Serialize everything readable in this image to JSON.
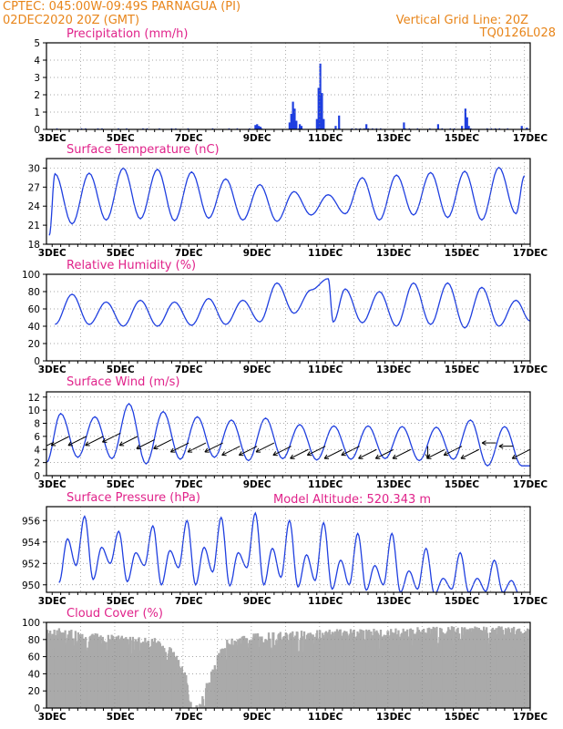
{
  "header": {
    "line1": "CPTEC:   045:00W-09:49S   PARNAGUA (PI)",
    "line2": "02DEC2020  20Z  (GMT)",
    "right1": "Vertical Grid Line: 20Z",
    "right2": "TQ0126L028",
    "model_altitude": "Model Altitude: 520.343 m"
  },
  "colors": {
    "header": "#e8851a",
    "title": "#e0228a",
    "line": "#1f3fe0",
    "cloud": "#aaaaaa",
    "grid": "#888888"
  },
  "x_ticks": [
    "3DEC",
    "5DEC",
    "7DEC",
    "9DEC",
    "11DEC",
    "13DEC",
    "15DEC",
    "17DEC"
  ],
  "chart_data": [
    {
      "type": "bar",
      "title": "Precipitation (mm/h)",
      "x_range_days": [
        2.833,
        17.0
      ],
      "ylim": [
        0,
        5
      ],
      "yticks": [
        "0",
        "1",
        "2",
        "3",
        "4",
        "5"
      ],
      "points": [
        [
          8.95,
          0.25
        ],
        [
          9.0,
          0.3
        ],
        [
          9.05,
          0.2
        ],
        [
          9.1,
          0.15
        ],
        [
          9.95,
          0.4
        ],
        [
          10.0,
          0.9
        ],
        [
          10.05,
          1.6
        ],
        [
          10.1,
          1.2
        ],
        [
          10.15,
          0.5
        ],
        [
          10.25,
          0.3
        ],
        [
          10.3,
          0.2
        ],
        [
          10.75,
          0.6
        ],
        [
          10.8,
          2.4
        ],
        [
          10.85,
          3.8
        ],
        [
          10.9,
          2.1
        ],
        [
          10.95,
          0.6
        ],
        [
          11.3,
          0.2
        ],
        [
          11.4,
          0.8
        ],
        [
          12.2,
          0.3
        ],
        [
          13.3,
          0.4
        ],
        [
          14.3,
          0.3
        ],
        [
          15.0,
          0.2
        ],
        [
          15.1,
          1.2
        ],
        [
          15.15,
          0.7
        ],
        [
          15.2,
          0.2
        ],
        [
          16.75,
          0.2
        ],
        [
          16.9,
          0.1
        ]
      ]
    },
    {
      "type": "line",
      "title": "Surface Temperature (nC)",
      "ylim": [
        18,
        31.5
      ],
      "yticks": [
        "18",
        "21",
        "24",
        "27",
        "30"
      ],
      "peak_days": [
        3.083,
        4.083,
        5.083,
        6.083,
        7.083,
        8.083,
        9.083,
        10.083,
        11.083,
        12.083,
        13.083,
        14.083,
        15.083,
        16.083,
        16.833
      ],
      "peaks": [
        29.1,
        29.2,
        30.0,
        29.8,
        29.4,
        28.3,
        27.4,
        26.3,
        25.8,
        28.5,
        28.9,
        29.3,
        29.5,
        30.1,
        28.8
      ],
      "troughs_days": [
        2.917,
        3.583,
        4.583,
        5.583,
        6.583,
        7.583,
        8.583,
        9.583,
        10.583,
        11.583,
        12.583,
        13.583,
        14.583,
        15.583,
        16.583
      ],
      "troughs": [
        19.4,
        21.2,
        21.8,
        22.0,
        21.7,
        22.1,
        21.8,
        21.6,
        22.6,
        22.8,
        21.8,
        22.6,
        22.2,
        21.8,
        22.8
      ]
    },
    {
      "type": "line",
      "title": "Relative Humidity (%)",
      "ylim": [
        0,
        100
      ],
      "yticks": [
        "0",
        "20",
        "40",
        "60",
        "80",
        "100"
      ],
      "peak_days": [
        3.583,
        4.583,
        5.583,
        6.583,
        7.583,
        8.583,
        9.583,
        10.583,
        11.083,
        11.583,
        12.583,
        13.583,
        14.583,
        15.583,
        16.583
      ],
      "peaks": [
        77,
        68,
        70,
        68,
        72,
        70,
        90,
        82,
        95,
        83,
        80,
        90,
        90,
        85,
        70
      ],
      "troughs_days": [
        3.083,
        4.083,
        5.083,
        6.083,
        7.083,
        8.083,
        9.083,
        10.083,
        11.233,
        12.083,
        13.083,
        14.083,
        15.083,
        16.083,
        17.0
      ],
      "troughs": [
        42,
        42,
        40,
        40,
        41,
        42,
        45,
        55,
        45,
        44,
        40,
        42,
        38,
        40,
        46
      ]
    },
    {
      "type": "line",
      "title": "Surface Wind (m/s)",
      "ylim": [
        0,
        12.8
      ],
      "yticks": [
        "0",
        "2",
        "4",
        "6",
        "8",
        "10",
        "12"
      ],
      "peak_days": [
        3.25,
        4.25,
        5.25,
        6.25,
        7.25,
        8.25,
        9.25,
        10.25,
        11.25,
        12.25,
        13.25,
        14.25,
        15.25,
        16.25
      ],
      "peaks": [
        9.5,
        9.0,
        11.0,
        9.8,
        9.0,
        8.5,
        8.8,
        7.8,
        7.6,
        7.6,
        7.5,
        7.4,
        8.5,
        7.5
      ],
      "troughs_days": [
        2.833,
        3.75,
        4.75,
        5.75,
        6.75,
        7.75,
        8.75,
        9.75,
        10.75,
        11.75,
        12.75,
        13.75,
        14.75,
        15.75,
        16.75,
        17.0
      ],
      "troughs": [
        2.0,
        2.8,
        2.6,
        1.8,
        2.5,
        2.8,
        2.3,
        2.6,
        2.4,
        2.5,
        2.6,
        2.3,
        2.5,
        1.5,
        1.5,
        1.5
      ]
    },
    {
      "type": "line",
      "title": "Surface Pressure (hPa)",
      "ylim": [
        949.3,
        957.3
      ],
      "yticks": [
        "950",
        "952",
        "954",
        "956"
      ],
      "peak_days": [
        3.45,
        3.95,
        4.45,
        4.95,
        5.45,
        5.95,
        6.45,
        6.95,
        7.45,
        7.95,
        8.45,
        8.95,
        9.45,
        9.95,
        10.45,
        10.95,
        11.45,
        11.95,
        12.45,
        12.95,
        13.45,
        13.95,
        14.45,
        14.95,
        15.45,
        15.95,
        16.45
      ],
      "peaks": [
        954.3,
        956.4,
        953.5,
        955.0,
        953.0,
        955.5,
        953.2,
        956.0,
        953.5,
        956.3,
        953.0,
        956.7,
        953.4,
        956.0,
        952.8,
        955.8,
        952.3,
        954.8,
        951.8,
        954.8,
        951.3,
        953.4,
        950.6,
        953.0,
        950.6,
        952.3,
        950.4
      ],
      "troughs_days": [
        3.2,
        3.7,
        4.2,
        4.7,
        5.2,
        5.7,
        6.2,
        6.7,
        7.2,
        7.7,
        8.2,
        8.7,
        9.2,
        9.7,
        10.2,
        10.7,
        11.2,
        11.7,
        12.2,
        12.7,
        13.2,
        13.7,
        14.2,
        14.7,
        15.2,
        15.7,
        16.2,
        16.7
      ],
      "troughs": [
        950.2,
        951.8,
        950.5,
        952.0,
        950.3,
        951.8,
        950.0,
        951.6,
        950.0,
        951.2,
        949.9,
        951.6,
        950.0,
        950.7,
        949.8,
        950.4,
        949.6,
        950.0,
        949.5,
        950.0,
        949.3,
        949.6,
        949.1,
        949.6,
        949.3,
        949.4,
        949.3,
        949.0
      ]
    },
    {
      "type": "bar",
      "title": "Cloud Cover (%)",
      "ylim": [
        0,
        100
      ],
      "yticks": [
        "0",
        "20",
        "40",
        "60",
        "80",
        "100"
      ],
      "profile_days": [
        2.833,
        3.5,
        4.0,
        5.0,
        6.0,
        6.5,
        6.9,
        7.05,
        7.2,
        7.6,
        8.0,
        9.0,
        10.0,
        11.0,
        12.0,
        13.0,
        14.0,
        15.0,
        16.0,
        17.0
      ],
      "profile_vals": [
        95,
        92,
        88,
        85,
        82,
        70,
        40,
        5,
        3,
        40,
        80,
        88,
        90,
        92,
        93,
        94,
        95,
        96,
        96,
        95
      ]
    }
  ],
  "wind_arrows": [
    {
      "day": 3.0,
      "speed": 5.0,
      "dir": "sw"
    },
    {
      "day": 3.5,
      "speed": 6.0,
      "dir": "sw"
    },
    {
      "day": 4.0,
      "speed": 6.0,
      "dir": "sw"
    },
    {
      "day": 4.5,
      "speed": 6.0,
      "dir": "sw"
    },
    {
      "day": 5.0,
      "speed": 6.5,
      "dir": "sw"
    },
    {
      "day": 5.5,
      "speed": 6.0,
      "dir": "sw"
    },
    {
      "day": 6.0,
      "speed": 5.5,
      "dir": "sw"
    },
    {
      "day": 6.5,
      "speed": 5.5,
      "dir": "sw"
    },
    {
      "day": 7.0,
      "speed": 5.0,
      "dir": "sw"
    },
    {
      "day": 7.5,
      "speed": 5.0,
      "dir": "sw"
    },
    {
      "day": 8.0,
      "speed": 5.0,
      "dir": "sw"
    },
    {
      "day": 8.5,
      "speed": 4.5,
      "dir": "sw"
    },
    {
      "day": 9.0,
      "speed": 4.5,
      "dir": "sw"
    },
    {
      "day": 9.5,
      "speed": 5.0,
      "dir": "sw"
    },
    {
      "day": 10.0,
      "speed": 4.5,
      "dir": "sw"
    },
    {
      "day": 10.5,
      "speed": 4.0,
      "dir": "sw"
    },
    {
      "day": 11.0,
      "speed": 4.5,
      "dir": "sw"
    },
    {
      "day": 11.5,
      "speed": 4.0,
      "dir": "sw"
    },
    {
      "day": 12.0,
      "speed": 4.5,
      "dir": "sw"
    },
    {
      "day": 12.5,
      "speed": 4.0,
      "dir": "sw"
    },
    {
      "day": 13.0,
      "speed": 4.0,
      "dir": "sw"
    },
    {
      "day": 13.5,
      "speed": 4.0,
      "dir": "sw"
    },
    {
      "day": 14.0,
      "speed": 4.5,
      "dir": "s"
    },
    {
      "day": 14.5,
      "speed": 4.0,
      "dir": "sw"
    },
    {
      "day": 15.0,
      "speed": 4.5,
      "dir": "sw"
    },
    {
      "day": 15.5,
      "speed": 4.0,
      "dir": "sw"
    },
    {
      "day": 16.0,
      "speed": 5.0,
      "dir": "w"
    },
    {
      "day": 16.5,
      "speed": 4.5,
      "dir": "w"
    },
    {
      "day": 17.0,
      "speed": 4.0,
      "dir": "sw"
    }
  ]
}
